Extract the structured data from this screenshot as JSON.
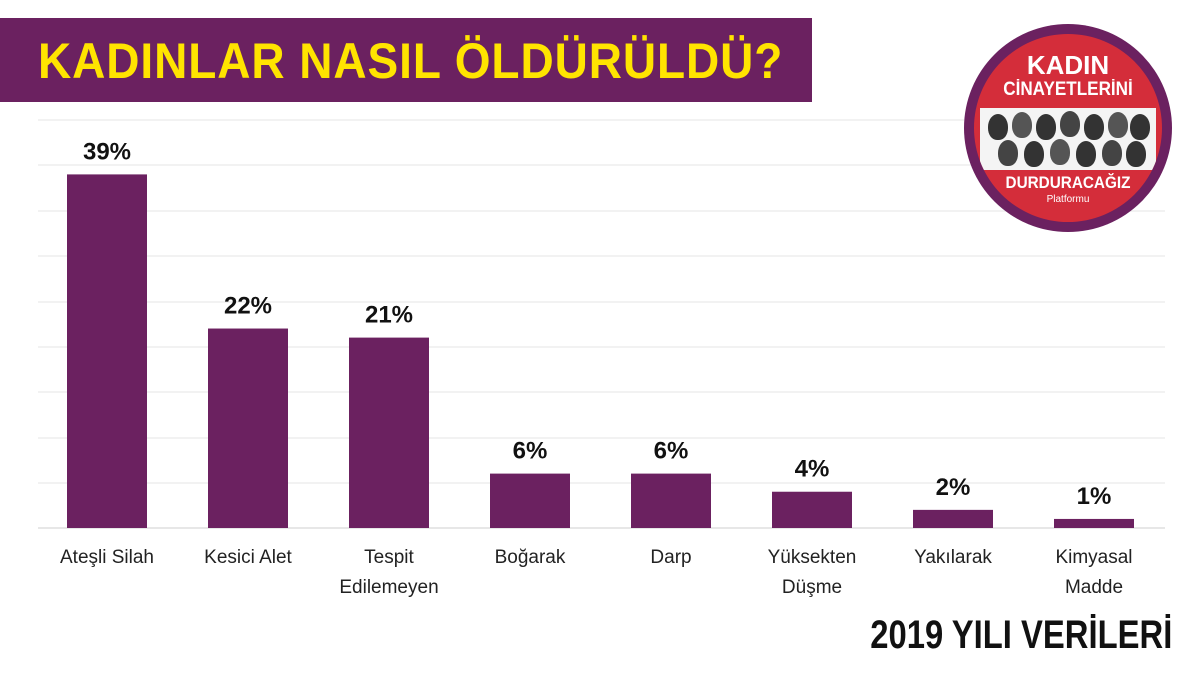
{
  "header": {
    "title": "KADINLAR NASIL ÖLDÜRÜLDÜ?"
  },
  "logo": {
    "line1": "KADIN",
    "line2": "CİNAYETLERİNİ",
    "line3": "DURDURACAĞIZ",
    "line4": "Platformu"
  },
  "footer": {
    "label": "2019 YILI VERİLERİ"
  },
  "colors": {
    "bar": "#6b2160",
    "title_bg": "#6b2160",
    "title_text": "#ffe400",
    "grid": "#e6e6e6"
  },
  "chart_data": {
    "type": "bar",
    "title": "KADINLAR NASIL ÖLDÜRÜLDÜ?",
    "categories": [
      [
        "Ateşli Silah"
      ],
      [
        "Kesici Alet"
      ],
      [
        "Tespit",
        "Edilemeyen"
      ],
      [
        "Boğarak"
      ],
      [
        "Darp"
      ],
      [
        "Yüksekten",
        "Düşme"
      ],
      [
        "Yakılarak"
      ],
      [
        "Kimyasal",
        "Madde"
      ]
    ],
    "values": [
      39,
      22,
      21,
      6,
      6,
      4,
      2,
      1
    ],
    "value_labels": [
      "39%",
      "22%",
      "21%",
      "6%",
      "6%",
      "4%",
      "2%",
      "1%"
    ],
    "ylim": [
      0,
      45
    ],
    "grid": true,
    "legend": "none"
  }
}
